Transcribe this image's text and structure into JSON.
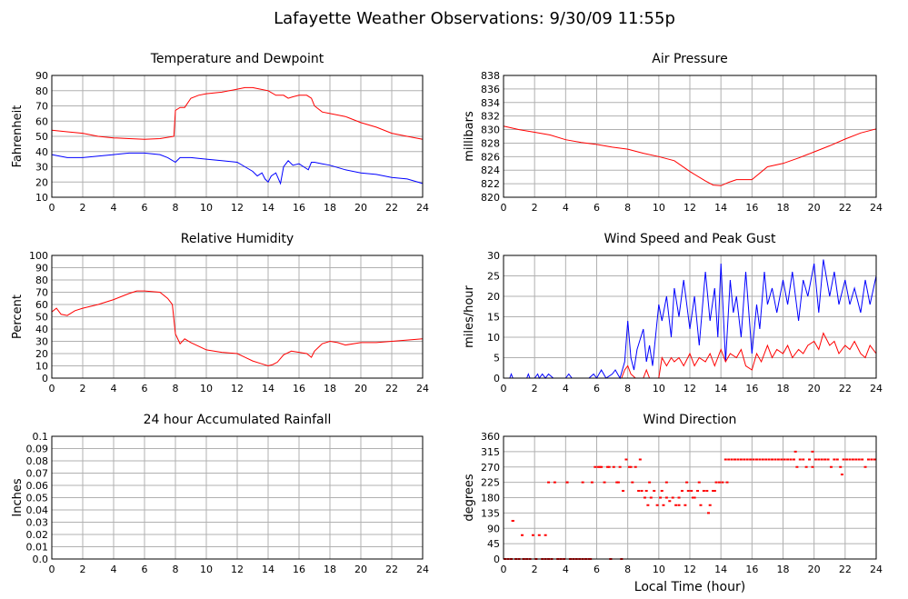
{
  "title": "Lafayette Weather Observations: 9/30/09 11:55p",
  "colors": {
    "red": "#ff0000",
    "blue": "#0000ff",
    "grid": "#b0b0b0",
    "frame": "#000000"
  },
  "chart_data": [
    {
      "type": "line",
      "title": "Temperature and Dewpoint",
      "xlabel": "",
      "ylabel": "Fahrenheit",
      "xlim": [
        0,
        24
      ],
      "ylim": [
        10,
        90
      ],
      "xticks": [
        0,
        2,
        4,
        6,
        8,
        10,
        12,
        14,
        16,
        18,
        20,
        22,
        24
      ],
      "yticks": [
        10,
        20,
        30,
        40,
        50,
        60,
        70,
        80,
        90
      ],
      "grid": true,
      "series": [
        {
          "color": "#ff0000",
          "x": [
            0,
            1,
            2,
            3,
            4,
            5,
            6,
            7,
            7.9,
            8.0,
            8.3,
            8.6,
            9,
            9.5,
            10,
            11,
            12,
            12.5,
            13,
            13.5,
            14,
            14.5,
            15,
            15.3,
            15.6,
            16,
            16.5,
            16.8,
            17,
            17.5,
            18,
            19,
            20,
            21,
            22,
            23,
            24
          ],
          "y": [
            54,
            53,
            52,
            50,
            49,
            48.5,
            48,
            48.5,
            50,
            67,
            69,
            69,
            75,
            77,
            78,
            79,
            81,
            82,
            82,
            81,
            80,
            77,
            77,
            75,
            76,
            77,
            77,
            75,
            70,
            66,
            65,
            63,
            59,
            56,
            52,
            50,
            48
          ]
        },
        {
          "color": "#0000ff",
          "x": [
            0,
            0.5,
            1,
            2,
            3,
            4,
            5,
            6,
            7,
            7.5,
            8,
            8.3,
            8.6,
            9,
            10,
            11,
            12,
            12.5,
            13,
            13.3,
            13.6,
            13.8,
            14,
            14.2,
            14.5,
            14.8,
            15,
            15.3,
            15.6,
            16,
            16.3,
            16.6,
            16.8,
            17,
            17.5,
            18,
            19,
            20,
            21,
            22,
            23,
            24
          ],
          "y": [
            38,
            37,
            36,
            36,
            37,
            38,
            39,
            39,
            38,
            36,
            33,
            36,
            36,
            36,
            35,
            34,
            33,
            30,
            27,
            24,
            26,
            22,
            20,
            24,
            26,
            19,
            30,
            34,
            31,
            32,
            30,
            28,
            33,
            33,
            32,
            31,
            28,
            26,
            25,
            23,
            22,
            19
          ]
        }
      ]
    },
    {
      "type": "line",
      "title": "Air Pressure",
      "xlabel": "",
      "ylabel": "millibars",
      "xlim": [
        0,
        24
      ],
      "ylim": [
        820,
        838
      ],
      "xticks": [
        0,
        2,
        4,
        6,
        8,
        10,
        12,
        14,
        16,
        18,
        20,
        22,
        24
      ],
      "yticks": [
        820,
        822,
        824,
        826,
        828,
        830,
        832,
        834,
        836,
        838
      ],
      "grid": true,
      "series": [
        {
          "color": "#ff0000",
          "x": [
            0,
            1,
            2,
            3,
            4,
            5,
            6,
            7,
            8,
            9,
            10,
            11,
            12,
            13,
            13.5,
            14,
            14.5,
            15,
            16,
            17,
            18,
            19,
            20,
            21,
            22,
            23,
            24
          ],
          "y": [
            830.5,
            830,
            829.6,
            829.2,
            828.5,
            828.1,
            827.8,
            827.4,
            827.1,
            826.5,
            826,
            825.4,
            823.8,
            822.4,
            821.8,
            821.7,
            822.2,
            822.6,
            822.6,
            824.5,
            825,
            825.8,
            826.7,
            827.6,
            828.6,
            829.5,
            830.1
          ]
        }
      ]
    },
    {
      "type": "line",
      "title": "Relative Humidity",
      "xlabel": "",
      "ylabel": "Percent",
      "xlim": [
        0,
        24
      ],
      "ylim": [
        0,
        100
      ],
      "xticks": [
        0,
        2,
        4,
        6,
        8,
        10,
        12,
        14,
        16,
        18,
        20,
        22,
        24
      ],
      "yticks": [
        0,
        10,
        20,
        30,
        40,
        50,
        60,
        70,
        80,
        90,
        100
      ],
      "grid": true,
      "series": [
        {
          "color": "#ff0000",
          "x": [
            0,
            0.3,
            0.6,
            1,
            1.5,
            2,
            3,
            4,
            5,
            5.5,
            6,
            7,
            7.5,
            7.8,
            8,
            8.3,
            8.6,
            9,
            10,
            11,
            12,
            12.5,
            13,
            13.5,
            14,
            14.3,
            14.6,
            15,
            15.5,
            16,
            16.5,
            16.8,
            17,
            17.5,
            18,
            18.5,
            19,
            20,
            21,
            22,
            23,
            24
          ],
          "y": [
            54,
            57,
            52,
            51,
            55,
            57,
            60,
            64,
            69,
            71,
            71,
            70,
            65,
            60,
            36,
            28,
            32,
            29,
            23,
            21,
            20,
            17,
            14,
            12,
            10,
            11,
            13,
            19,
            22,
            21,
            20,
            17,
            22,
            28,
            30,
            29,
            27,
            29,
            29,
            30,
            31,
            32
          ]
        }
      ]
    },
    {
      "type": "line",
      "title": "Wind Speed and Peak Gust",
      "xlabel": "",
      "ylabel": "miles/hour",
      "xlim": [
        0,
        24
      ],
      "ylim": [
        0,
        30
      ],
      "xticks": [
        0,
        2,
        4,
        6,
        8,
        10,
        12,
        14,
        16,
        18,
        20,
        22,
        24
      ],
      "yticks": [
        0,
        5,
        10,
        15,
        20,
        25,
        30
      ],
      "grid": true,
      "series": [
        {
          "color": "#0000ff",
          "x": [
            0,
            0.4,
            0.5,
            0.6,
            1,
            1.5,
            1.6,
            1.7,
            2,
            2.2,
            2.3,
            2.5,
            2.7,
            2.9,
            3.2,
            3.5,
            4,
            4.2,
            4.4,
            5,
            5.5,
            5.8,
            6,
            6.3,
            6.6,
            7,
            7.2,
            7.5,
            7.8,
            8,
            8.2,
            8.4,
            8.6,
            9,
            9.2,
            9.4,
            9.6,
            10,
            10.2,
            10.5,
            10.8,
            11,
            11.3,
            11.6,
            12,
            12.3,
            12.6,
            13,
            13.3,
            13.6,
            13.8,
            14,
            14.3,
            14.6,
            14.8,
            15,
            15.3,
            15.6,
            16,
            16.3,
            16.5,
            16.8,
            17,
            17.3,
            17.6,
            18,
            18.3,
            18.6,
            19,
            19.3,
            19.6,
            20,
            20.3,
            20.6,
            21,
            21.3,
            21.6,
            22,
            22.3,
            22.6,
            23,
            23.3,
            23.6,
            24
          ],
          "y": [
            0,
            0,
            1,
            0,
            0,
            0,
            1,
            0,
            0,
            1,
            0,
            1,
            0,
            1,
            0,
            0,
            0,
            1,
            0,
            0,
            0,
            1,
            0,
            2,
            0,
            1,
            2,
            0,
            4,
            14,
            5,
            2,
            7,
            12,
            4,
            8,
            3,
            18,
            14,
            20,
            10,
            22,
            15,
            24,
            12,
            20,
            8,
            26,
            14,
            22,
            10,
            28,
            4,
            24,
            16,
            20,
            10,
            26,
            6,
            18,
            12,
            26,
            18,
            22,
            16,
            24,
            18,
            26,
            14,
            24,
            20,
            28,
            16,
            29,
            20,
            26,
            18,
            24,
            18,
            22,
            16,
            24,
            18,
            25
          ]
        },
        {
          "color": "#ff0000",
          "x": [
            0,
            7.6,
            7.8,
            8,
            8.2,
            8.5,
            9,
            9.2,
            9.4,
            9.6,
            10,
            10.2,
            10.5,
            10.8,
            11,
            11.3,
            11.6,
            12,
            12.3,
            12.6,
            13,
            13.3,
            13.6,
            14,
            14.3,
            14.6,
            15,
            15.3,
            15.6,
            16,
            16.3,
            16.6,
            17,
            17.3,
            17.6,
            18,
            18.3,
            18.6,
            19,
            19.3,
            19.6,
            20,
            20.3,
            20.6,
            21,
            21.3,
            21.6,
            22,
            22.3,
            22.6,
            23,
            23.3,
            23.6,
            24
          ],
          "y": [
            0,
            0,
            2,
            3,
            1,
            0,
            0,
            2,
            0,
            0,
            0,
            5,
            3,
            5,
            4,
            5,
            3,
            6,
            3,
            5,
            4,
            6,
            3,
            7,
            4,
            6,
            5,
            7,
            3,
            2,
            6,
            4,
            8,
            5,
            7,
            6,
            8,
            5,
            7,
            6,
            8,
            9,
            7,
            11,
            8,
            9,
            6,
            8,
            7,
            9,
            6,
            5,
            8,
            6
          ]
        }
      ]
    },
    {
      "type": "line",
      "title": "24 hour Accumulated Rainfall",
      "xlabel": "",
      "ylabel": "Inches",
      "xlim": [
        0,
        24
      ],
      "ylim": [
        0,
        0.1
      ],
      "xticks": [
        0,
        2,
        4,
        6,
        8,
        10,
        12,
        14,
        16,
        18,
        20,
        22,
        24
      ],
      "yticks": [
        "0.0",
        "0.01",
        "0.02",
        "0.03",
        "0.04",
        "0.05",
        "0.06",
        "0.07",
        "0.08",
        "0.09",
        "0.1"
      ],
      "grid": true,
      "series": [
        {
          "color": "#ff0000",
          "x": [
            0,
            24
          ],
          "y": [
            0,
            0
          ]
        }
      ]
    },
    {
      "type": "scatter",
      "title": "Wind Direction",
      "xlabel": "Local Time (hour)",
      "ylabel": "degrees",
      "xlim": [
        0,
        24
      ],
      "ylim": [
        0,
        360
      ],
      "xticks": [
        0,
        2,
        4,
        6,
        8,
        10,
        12,
        14,
        16,
        18,
        20,
        22,
        24
      ],
      "yticks": [
        0,
        45,
        90,
        135,
        180,
        225,
        270,
        315,
        360
      ],
      "grid": true,
      "series": [
        {
          "color": "#ff0000",
          "x": [
            0.1,
            0.3,
            0.5,
            0.6,
            0.8,
            1,
            1.2,
            1.3,
            1.5,
            1.7,
            1.9,
            2.1,
            2.3,
            2.5,
            2.7,
            2.9,
            3.1,
            3.3,
            3.5,
            3.7,
            3.9,
            4.1,
            4.3,
            4.5,
            4.7,
            4.9,
            5.1,
            5.3,
            5.5,
            5.7,
            5.9,
            6.1,
            6.3,
            6.5,
            6.7,
            6.9,
            7.1,
            7.3,
            7.5,
            7.7,
            7.9,
            8.1,
            8.3,
            8.5,
            8.7,
            8.9,
            9.1,
            9.3,
            9.5,
            9.7,
            9.9,
            10.1,
            10.3,
            10.5,
            10.7,
            10.9,
            11.1,
            11.3,
            11.5,
            11.7,
            11.9,
            12.1,
            12.3,
            12.5,
            12.7,
            12.9,
            13.1,
            13.3,
            13.5,
            13.7,
            13.9,
            14.1,
            14.3,
            14.5,
            14.7,
            14.9,
            15.1,
            15.3,
            15.5,
            15.7,
            15.9,
            16.1,
            16.3,
            16.5,
            16.7,
            16.9,
            17.1,
            17.3,
            17.5,
            17.7,
            17.9,
            18.1,
            18.3,
            18.5,
            18.7,
            18.9,
            19.1,
            19.3,
            19.5,
            19.7,
            19.9,
            20.1,
            20.3,
            20.5,
            20.7,
            20.9,
            21.1,
            21.3,
            21.5,
            21.7,
            21.9,
            22.1,
            22.3,
            22.5,
            22.7,
            22.9,
            23.1,
            23.3,
            23.5,
            23.7,
            23.9,
            0.6,
            1.3,
            2.7,
            3.5,
            4.3,
            5.1,
            2.9,
            4.1,
            5.6,
            6.2,
            6.8,
            7.4,
            8.2,
            9.2,
            10.5,
            11.8,
            12.6,
            13.2,
            14.4,
            8.8,
            9.4,
            10.2,
            11.3,
            12.2,
            13.6,
            18.8,
            19.9,
            21.8,
            6.9,
            7.6
          ],
          "y": [
            0,
            0,
            0,
            112,
            0,
            0,
            70,
            0,
            0,
            0,
            70,
            0,
            70,
            0,
            70,
            0,
            0,
            225,
            0,
            0,
            0,
            225,
            0,
            0,
            0,
            0,
            225,
            0,
            0,
            225,
            270,
            270,
            270,
            225,
            270,
            0,
            270,
            225,
            270,
            200,
            292,
            270,
            225,
            270,
            200,
            200,
            180,
            158,
            180,
            200,
            158,
            180,
            158,
            180,
            170,
            180,
            158,
            180,
            200,
            158,
            200,
            200,
            180,
            200,
            158,
            200,
            200,
            158,
            200,
            225,
            225,
            225,
            292,
            292,
            292,
            292,
            292,
            292,
            292,
            292,
            292,
            292,
            292,
            292,
            292,
            292,
            292,
            292,
            292,
            292,
            292,
            292,
            292,
            292,
            292,
            270,
            292,
            292,
            270,
            292,
            270,
            292,
            292,
            292,
            292,
            292,
            270,
            292,
            292,
            270,
            292,
            292,
            292,
            292,
            292,
            292,
            292,
            270,
            292,
            292,
            292,
            112,
            0,
            0,
            0,
            0,
            0,
            225,
            225,
            0,
            270,
            270,
            225,
            270,
            200,
            225,
            225,
            225,
            135,
            225,
            292,
            225,
            200,
            158,
            180,
            200,
            315,
            315,
            248,
            0,
            0
          ]
        }
      ]
    }
  ]
}
